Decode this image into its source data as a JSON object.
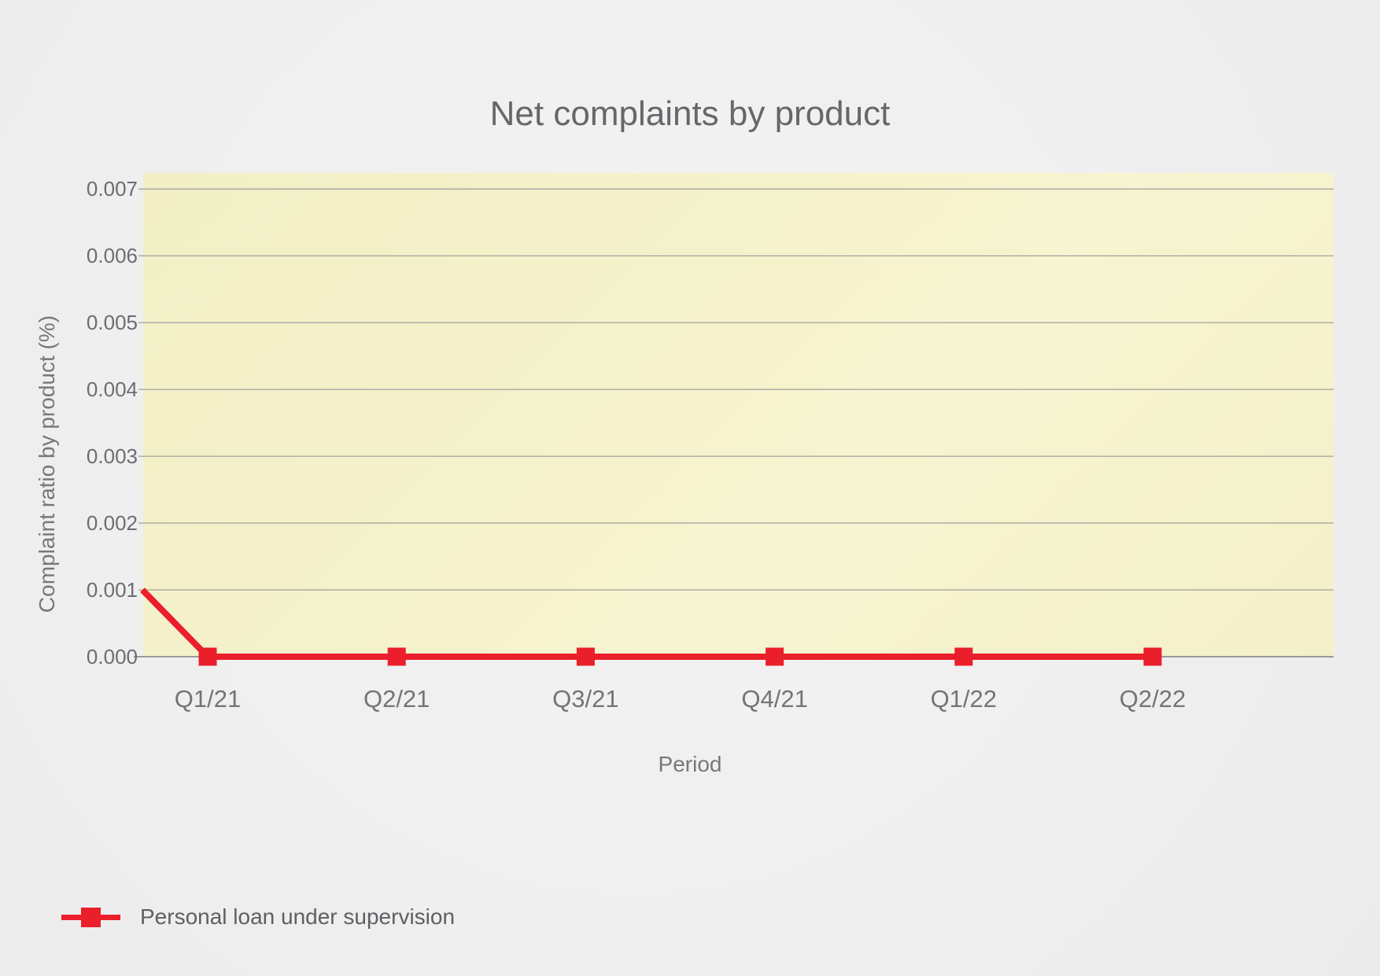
{
  "title": "Net complaints by product",
  "x_axis_title": "Period",
  "y_axis_title": "Complaint ratio by product (%)",
  "legend": {
    "position": "bottom-left",
    "items": [
      {
        "label": "Personal loan under supervision",
        "color": "#ea1f2b",
        "marker": "square-on-line"
      }
    ]
  },
  "colors": {
    "series_red": "#ea1f2b",
    "plot_background": "#f5f2cc",
    "gridline": "#a9a9a0",
    "axis_line": "#9a9a9a",
    "page_background": "#efefef",
    "title_text": "#66676b",
    "tick_text": "#6c6d71",
    "axis_title_text": "#77787a",
    "legend_text": "#5e5f63"
  },
  "chart_data": {
    "type": "line",
    "title": "Net complaints by product",
    "xlabel": "Period",
    "ylabel": "Complaint ratio by product (%)",
    "categories": [
      "Q1/21",
      "Q2/21",
      "Q3/21",
      "Q4/21",
      "Q1/22",
      "Q2/22"
    ],
    "series": [
      {
        "name": "Personal loan under supervision",
        "color": "#ea1f2b",
        "marker": "square",
        "leading_edge_value": 0.001,
        "values": [
          0.0,
          0.0,
          0.0,
          0.0,
          0.0,
          0.0
        ]
      }
    ],
    "y_ticks": [
      0.007,
      0.006,
      0.005,
      0.004,
      0.003,
      0.002,
      0.001,
      0.0
    ],
    "y_tick_labels": [
      "0.007",
      "0.006",
      "0.005",
      "0.004",
      "0.003",
      "0.002",
      "0.001",
      "0.000"
    ],
    "ylim": [
      0,
      0.00724
    ],
    "grid": true,
    "legend_position": "bottom-left"
  }
}
